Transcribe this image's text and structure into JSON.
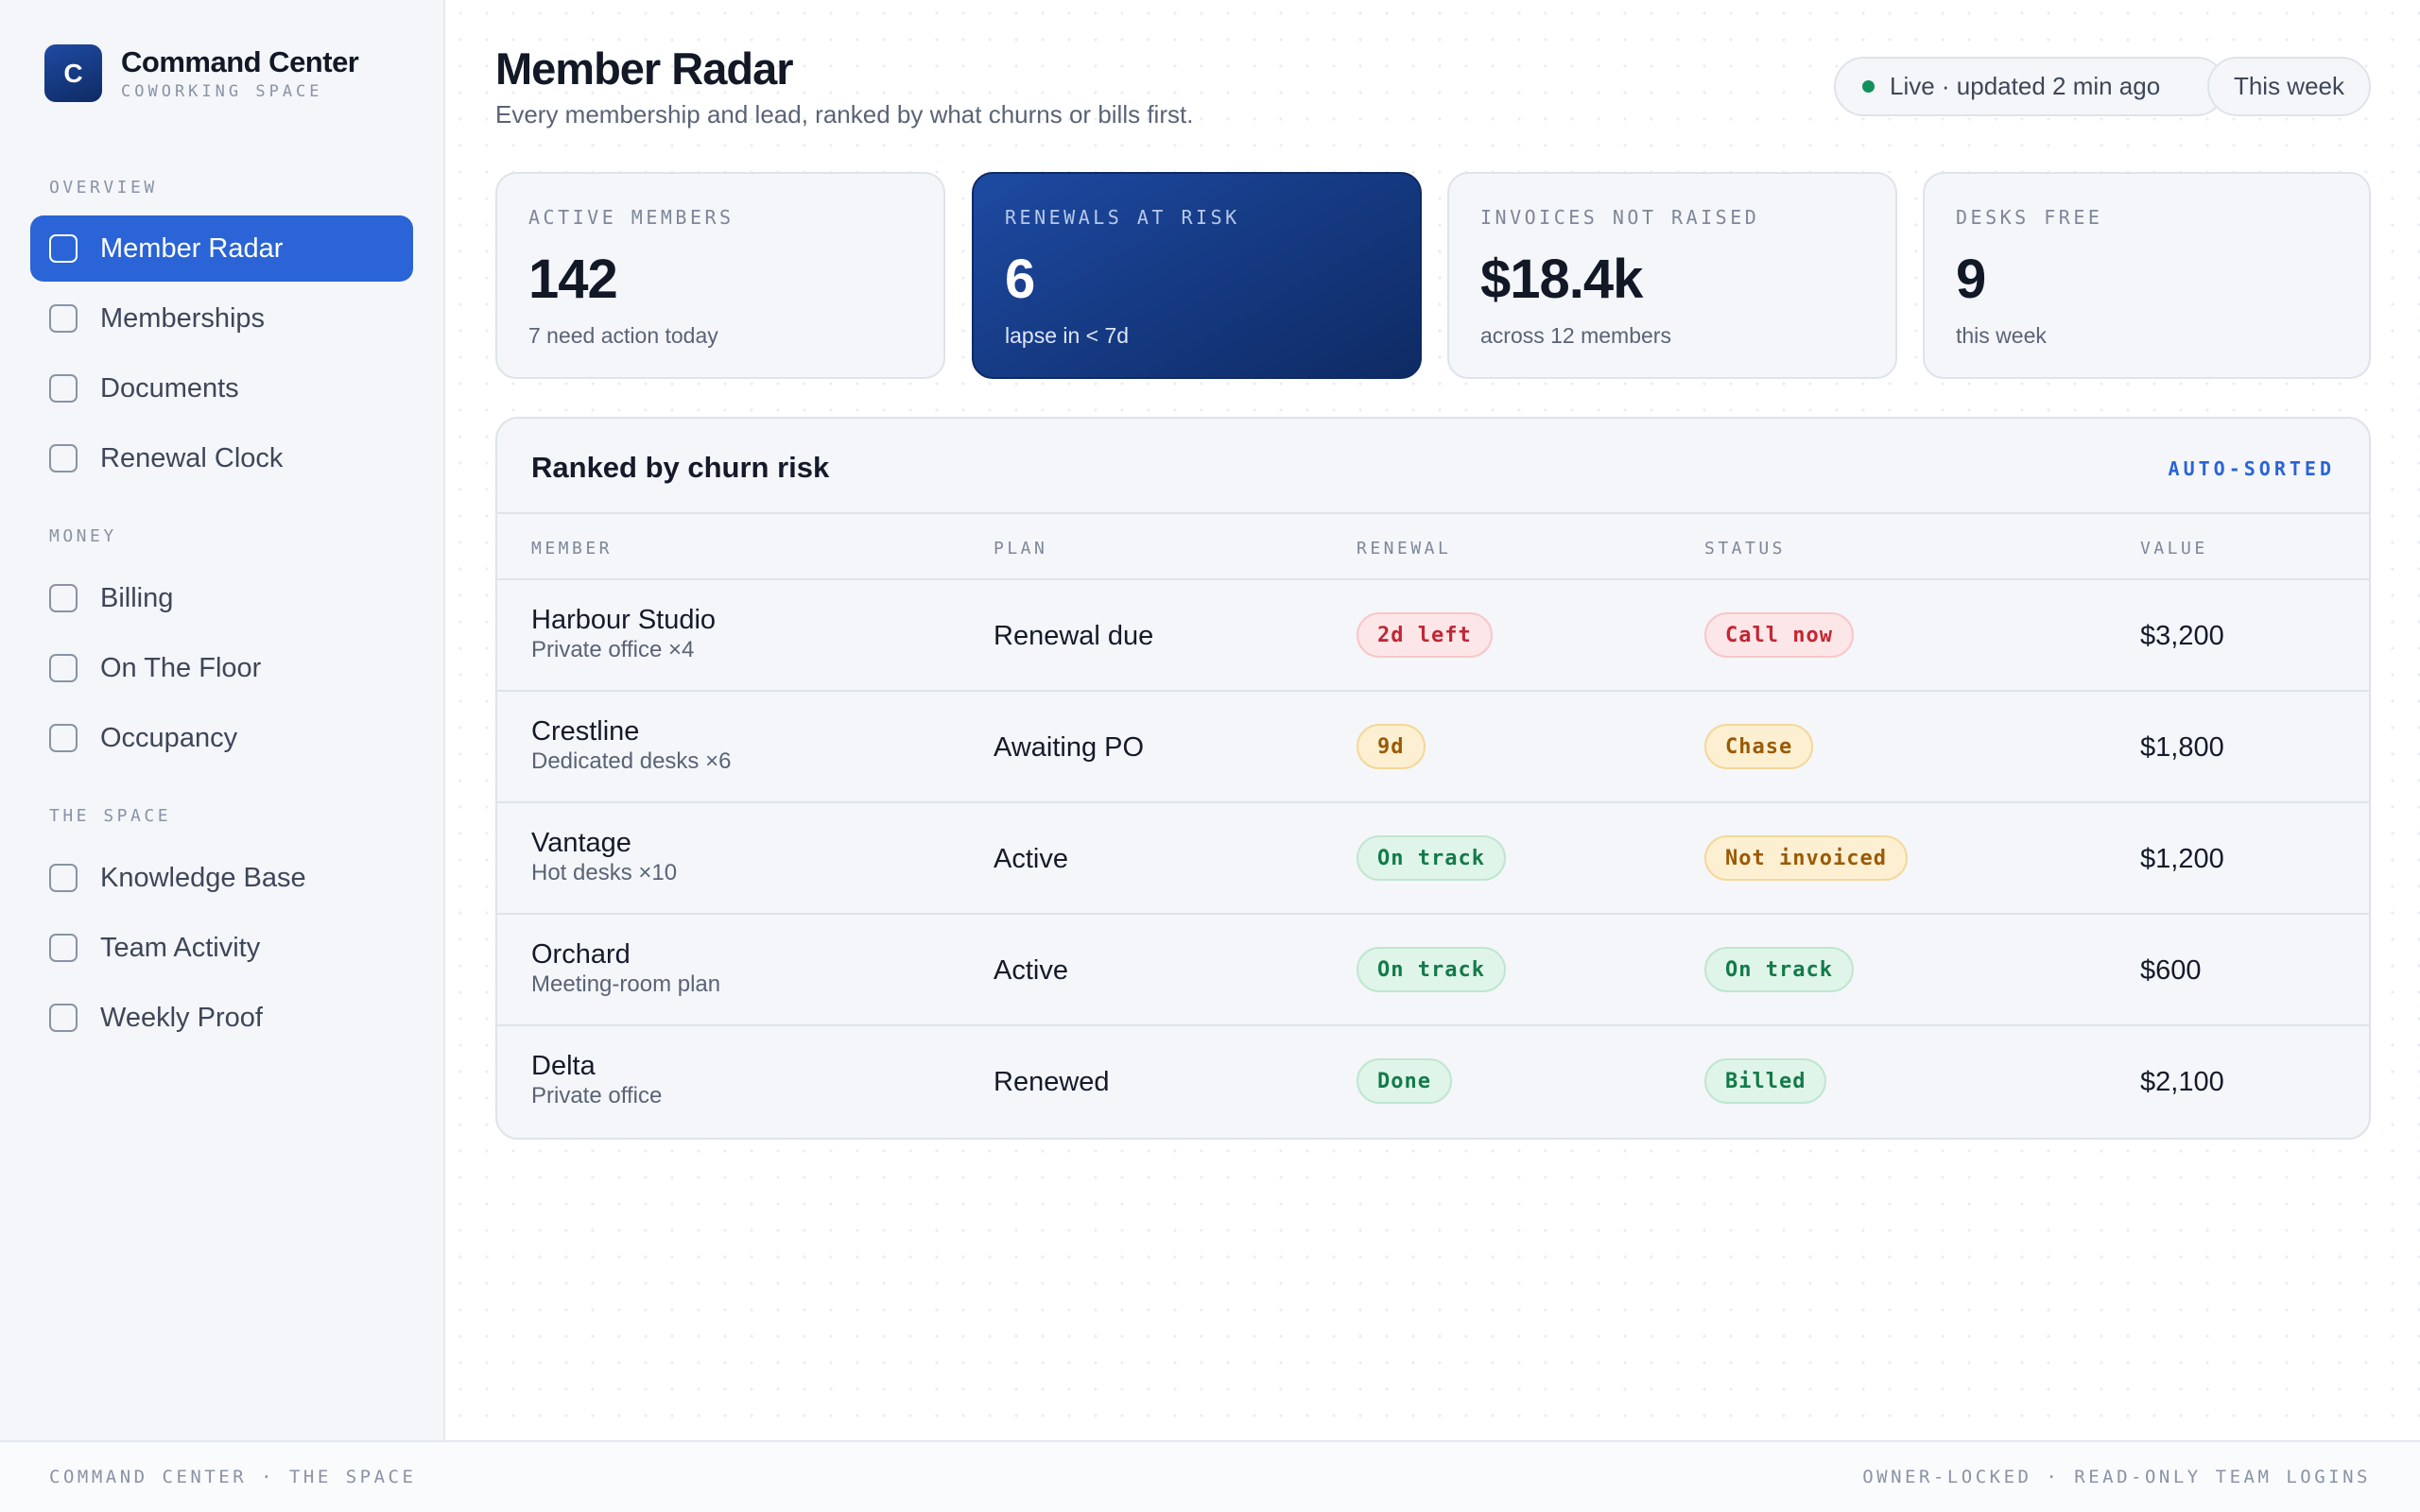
{
  "brand": {
    "logo_letter": "C",
    "name": "Command Center",
    "subtitle": "COWORKING SPACE"
  },
  "sidebar": {
    "sections": [
      {
        "label": "OVERVIEW"
      },
      {
        "label": "MONEY"
      },
      {
        "label": "THE SPACE"
      }
    ],
    "items": [
      {
        "label": "Member Radar",
        "active": true
      },
      {
        "label": "Memberships"
      },
      {
        "label": "Documents"
      },
      {
        "label": "Renewal Clock"
      },
      {
        "label": "Billing"
      },
      {
        "label": "On The Floor"
      },
      {
        "label": "Occupancy"
      },
      {
        "label": "Knowledge Base"
      },
      {
        "label": "Team Activity"
      },
      {
        "label": "Weekly Proof"
      }
    ]
  },
  "header": {
    "title": "Member Radar",
    "subtitle": "Every membership and lead, ranked by what churns or bills first.",
    "live_status": "Live · updated 2 min ago",
    "period": "This week"
  },
  "stats": [
    {
      "label": "ACTIVE MEMBERS",
      "value": "142",
      "note": "7 need action today"
    },
    {
      "label": "RENEWALS AT RISK",
      "value": "6",
      "note": "lapse in < 7d",
      "highlight": true
    },
    {
      "label": "INVOICES NOT RAISED",
      "value": "$18.4k",
      "note": "across 12 members"
    },
    {
      "label": "DESKS FREE",
      "value": "9",
      "note": "this week"
    }
  ],
  "table": {
    "title": "Ranked by churn risk",
    "tag": "AUTO-SORTED",
    "columns": [
      "MEMBER",
      "PLAN",
      "RENEWAL",
      "STATUS",
      "VALUE"
    ],
    "rows": [
      {
        "member": "Harbour Studio",
        "detail": "Private office ×4",
        "plan": "Renewal due",
        "renewal": "2d left",
        "renewal_tone": "red",
        "status": "Call now",
        "status_tone": "red",
        "value": "$3,200"
      },
      {
        "member": "Crestline",
        "detail": "Dedicated desks ×6",
        "plan": "Awaiting PO",
        "renewal": "9d",
        "renewal_tone": "amber",
        "status": "Chase",
        "status_tone": "amber",
        "value": "$1,800"
      },
      {
        "member": "Vantage",
        "detail": "Hot desks ×10",
        "plan": "Active",
        "renewal": "On track",
        "renewal_tone": "green",
        "status": "Not invoiced",
        "status_tone": "amber",
        "value": "$1,200"
      },
      {
        "member": "Orchard",
        "detail": "Meeting-room plan",
        "plan": "Active",
        "renewal": "On track",
        "renewal_tone": "green",
        "status": "On track",
        "status_tone": "green",
        "value": "$600"
      },
      {
        "member": "Delta",
        "detail": "Private office",
        "plan": "Renewed",
        "renewal": "Done",
        "renewal_tone": "green",
        "status": "Billed",
        "status_tone": "green",
        "value": "$2,100"
      }
    ]
  },
  "footer": {
    "left": "COMMAND CENTER · THE SPACE",
    "right": "OWNER-LOCKED · READ-ONLY TEAM LOGINS"
  },
  "colors": {
    "accent": "#2a64d6",
    "highlight_card": "#12357c",
    "danger": "#c22634",
    "warning": "#9a5a06",
    "success": "#137a4a"
  }
}
